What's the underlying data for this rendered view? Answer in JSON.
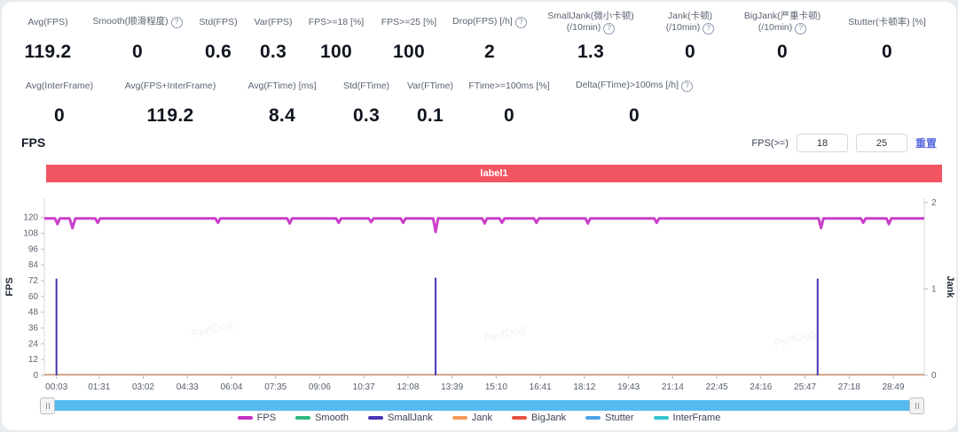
{
  "icons": {
    "help": "?"
  },
  "watermark": "PerfDog",
  "stats_primary": [
    {
      "label": "Avg(FPS)",
      "value": "119.2",
      "help": false
    },
    {
      "label": "Smooth(顺滑程度)",
      "value": "0",
      "help": true
    },
    {
      "label": "Std(FPS)",
      "value": "0.6",
      "help": false
    },
    {
      "label": "Var(FPS)",
      "value": "0.3",
      "help": false
    },
    {
      "label": "FPS>=18 [%]",
      "value": "100",
      "help": false
    },
    {
      "label": "FPS>=25 [%]",
      "value": "100",
      "help": false
    },
    {
      "label": "Drop(FPS) [/h]",
      "value": "2",
      "help": true
    },
    {
      "label": "SmallJank(微小卡顿)",
      "label2": "(/10min)",
      "value": "1.3",
      "help": true
    },
    {
      "label": "Jank(卡顿)",
      "label2": "(/10min)",
      "value": "0",
      "help": true
    },
    {
      "label": "BigJank(严重卡顿)",
      "label2": "(/10min)",
      "value": "0",
      "help": true
    },
    {
      "label": "Stutter(卡顿率) [%]",
      "value": "0",
      "help": false
    }
  ],
  "stats_secondary": [
    {
      "label": "Avg(InterFrame)",
      "value": "0",
      "help": false
    },
    {
      "label": "Avg(FPS+InterFrame)",
      "value": "119.2",
      "help": false
    },
    {
      "label": "Avg(FTime) [ms]",
      "value": "8.4",
      "help": false
    },
    {
      "label": "Std(FTime)",
      "value": "0.3",
      "help": false
    },
    {
      "label": "Var(FTime)",
      "value": "0.1",
      "help": false
    },
    {
      "label": "FTime>=100ms [%]",
      "value": "0",
      "help": false
    },
    {
      "label": "Delta(FTime)>100ms [/h]",
      "value": "0",
      "help": true
    }
  ],
  "fps_section": {
    "title": "FPS",
    "threshold_label": "FPS(>=)",
    "threshold_low": "18",
    "threshold_high": "25",
    "reset_label": "重置"
  },
  "banner": {
    "text": "label1",
    "color": "#f25562"
  },
  "chart_data": {
    "type": "line",
    "x_axis": {
      "range": [
        -22,
        1793
      ],
      "ticks": [
        {
          "t": 3,
          "label": "00:03"
        },
        {
          "t": 91,
          "label": "01:31"
        },
        {
          "t": 182,
          "label": "03:02"
        },
        {
          "t": 273,
          "label": "04:33"
        },
        {
          "t": 364,
          "label": "06:04"
        },
        {
          "t": 455,
          "label": "07:35"
        },
        {
          "t": 546,
          "label": "09:06"
        },
        {
          "t": 637,
          "label": "10:37"
        },
        {
          "t": 728,
          "label": "12:08"
        },
        {
          "t": 819,
          "label": "13:39"
        },
        {
          "t": 910,
          "label": "15:10"
        },
        {
          "t": 1001,
          "label": "16:41"
        },
        {
          "t": 1092,
          "label": "18:12"
        },
        {
          "t": 1183,
          "label": "19:43"
        },
        {
          "t": 1274,
          "label": "21:14"
        },
        {
          "t": 1365,
          "label": "22:45"
        },
        {
          "t": 1456,
          "label": "24:16"
        },
        {
          "t": 1547,
          "label": "25:47"
        },
        {
          "t": 1638,
          "label": "27:18"
        },
        {
          "t": 1729,
          "label": "28:49"
        }
      ]
    },
    "left_axis": {
      "label": "FPS",
      "ticks": [
        0,
        12,
        24,
        36,
        48,
        60,
        72,
        84,
        96,
        108,
        120
      ],
      "max": 134.6
    },
    "right_axis": {
      "label": "Jank",
      "ticks": [
        0,
        1,
        2
      ],
      "max": 2.05
    },
    "series": [
      {
        "name": "FPS",
        "color": "#c62fc4",
        "axis": "left",
        "type": "line",
        "points": [
          [
            -22,
            119.3
          ],
          [
            0,
            119.3
          ],
          [
            5,
            115
          ],
          [
            10,
            119.3
          ],
          [
            30,
            119.3
          ],
          [
            36,
            112
          ],
          [
            42,
            119.3
          ],
          [
            83,
            119.3
          ],
          [
            88,
            116
          ],
          [
            93,
            119.3
          ],
          [
            331,
            119.3
          ],
          [
            336,
            116
          ],
          [
            341,
            119.3
          ],
          [
            479,
            119.3
          ],
          [
            484,
            115.5
          ],
          [
            489,
            119.3
          ],
          [
            580,
            119.3
          ],
          [
            585,
            116
          ],
          [
            590,
            119.3
          ],
          [
            647,
            119.3
          ],
          [
            652,
            116.5
          ],
          [
            657,
            119.3
          ],
          [
            713,
            119.3
          ],
          [
            718,
            116
          ],
          [
            723,
            119.3
          ],
          [
            780,
            119.3
          ],
          [
            785,
            109
          ],
          [
            790,
            119.3
          ],
          [
            881,
            119.3
          ],
          [
            886,
            115.5
          ],
          [
            891,
            119.3
          ],
          [
            917,
            119.3
          ],
          [
            922,
            116
          ],
          [
            927,
            119.3
          ],
          [
            988,
            119.3
          ],
          [
            993,
            116
          ],
          [
            998,
            119.3
          ],
          [
            1094,
            119.3
          ],
          [
            1099,
            115.5
          ],
          [
            1104,
            119.3
          ],
          [
            1236,
            119.3
          ],
          [
            1241,
            116
          ],
          [
            1246,
            119.3
          ],
          [
            1575,
            119.3
          ],
          [
            1580,
            112
          ],
          [
            1585,
            119.3
          ],
          [
            1662,
            119.3
          ],
          [
            1667,
            116
          ],
          [
            1672,
            119.3
          ],
          [
            1715,
            119.3
          ],
          [
            1720,
            115
          ],
          [
            1725,
            119.3
          ],
          [
            1793,
            119.3
          ]
        ]
      },
      {
        "name": "SmallJank",
        "color": "#4636b0",
        "axis": "right",
        "type": "spike",
        "points": [
          [
            3,
            1.12
          ],
          [
            785,
            1.13
          ],
          [
            1573,
            1.12
          ]
        ]
      },
      {
        "name": "Smooth",
        "color": "#2eb87f",
        "axis": "left",
        "type": "flat-zero"
      },
      {
        "name": "Stutter",
        "color": "#4aa3e8",
        "axis": "left",
        "type": "flat-zero"
      },
      {
        "name": "InterFrame",
        "color": "#35c4cf",
        "axis": "left",
        "type": "flat-zero"
      },
      {
        "name": "BigJank",
        "color": "#e2523d",
        "axis": "right",
        "type": "flat-zero"
      },
      {
        "name": "Jank",
        "color": "#f49a57",
        "axis": "right",
        "type": "flat-zero"
      }
    ],
    "legend": [
      "FPS",
      "Smooth",
      "SmallJank",
      "Jank",
      "BigJank",
      "Stutter",
      "InterFrame"
    ]
  }
}
